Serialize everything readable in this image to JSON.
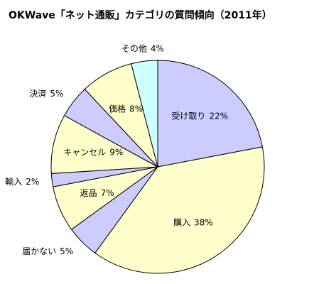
{
  "chart_data": {
    "type": "pie",
    "title": "OKWave「ネット通販」カテゴリの質問傾向（2011年）",
    "categories": [
      "受け取り",
      "購入",
      "届かない",
      "返品",
      "輸入",
      "キャンセル",
      "決済",
      "価格",
      "その他"
    ],
    "values": [
      22,
      38,
      5,
      7,
      2,
      9,
      5,
      8,
      4
    ],
    "value_labels": [
      "22%",
      "38%",
      "5%",
      "7%",
      "2%",
      "9%",
      "5%",
      "8%",
      "4%"
    ],
    "colors": [
      "#ccccff",
      "#ffffcc",
      "#ccccff",
      "#ffffcc",
      "#ccccff",
      "#ffffcc",
      "#ccccff",
      "#ffffcc",
      "#ccffff"
    ]
  }
}
